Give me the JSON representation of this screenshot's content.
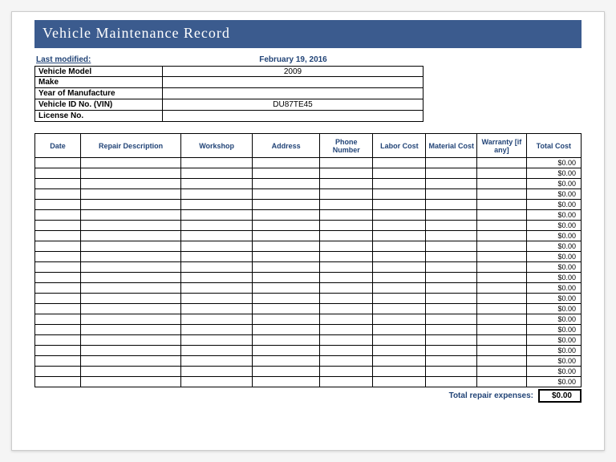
{
  "title": "Vehicle Maintenance  Record",
  "info": {
    "modified_label": "Last modified:",
    "modified_value": "February 19, 2016",
    "model_label": "Vehicle Model",
    "model_value": "2009",
    "make_label": "Make",
    "make_value": "",
    "year_label": "Year of Manufacture",
    "year_value": "",
    "vin_label": "Vehicle ID No. (VIN)",
    "vin_value": "DU87TE45",
    "license_label": "License No.",
    "license_value": ""
  },
  "table": {
    "columns": [
      "Date",
      "Repair Description",
      "Workshop",
      "Address",
      "Phone Number",
      "Labor Cost",
      "Material Cost",
      "Warranty [if any]",
      "Total Cost"
    ],
    "col_widths": [
      "50px",
      "110px",
      "78px",
      "74px",
      "58px",
      "58px",
      "56px",
      "54px",
      "60px"
    ],
    "row_count": 22,
    "default_total": "$0.00"
  },
  "footer": {
    "label": "Total repair expenses:",
    "value": "$0.00"
  },
  "colors": {
    "header_bg": "#3b5b8e",
    "accent_text": "#224477",
    "border": "#000000",
    "page_bg": "#ffffff"
  }
}
